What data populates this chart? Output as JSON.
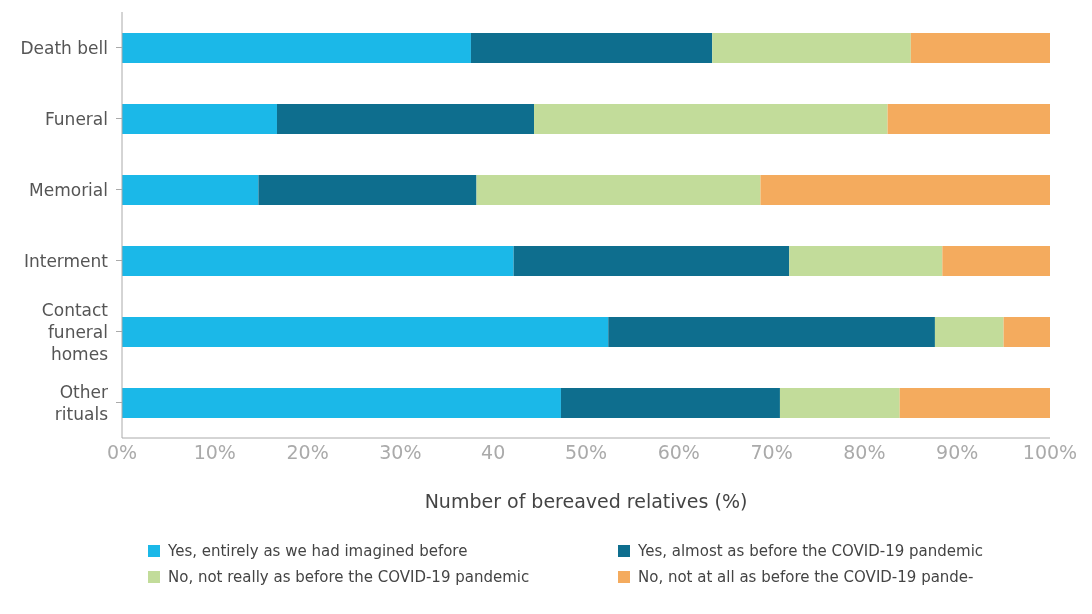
{
  "chart_data": {
    "type": "bar",
    "orientation": "horizontal",
    "stacked": true,
    "xlabel": "Number of bereaved relatives (%)",
    "categories": [
      "Death bell",
      "Funeral",
      "Memorial",
      "Interment",
      "Contact funeral homes",
      "Other rituals"
    ],
    "series": [
      {
        "name": "Yes, entirely as we had imagined before",
        "color": "#1bb8e8",
        "values": [
          37.6,
          16.7,
          14.7,
          42.2,
          52.4,
          47.3
        ]
      },
      {
        "name": "Yes, almost as before the COVID-19 pandemic",
        "color": "#0e6e8e",
        "values": [
          26.0,
          27.7,
          23.5,
          29.7,
          35.2,
          23.6
        ]
      },
      {
        "name": "No, not really as before the COVID-19 pandemic",
        "color": "#c2dc9a",
        "values": [
          21.4,
          38.1,
          30.6,
          16.5,
          7.4,
          12.9
        ]
      },
      {
        "name": "No, not at all as before the COVID-19 pande-",
        "color": "#f4ab5e",
        "values": [
          15.0,
          17.5,
          31.2,
          11.6,
          5.0,
          16.2
        ]
      }
    ],
    "xlim": [
      0,
      100
    ],
    "xticks": [
      {
        "value": 0,
        "label": "0%"
      },
      {
        "value": 10,
        "label": "10%"
      },
      {
        "value": 20,
        "label": "20%"
      },
      {
        "value": 30,
        "label": "30%"
      },
      {
        "value": 40,
        "label": "40"
      },
      {
        "value": 50,
        "label": "50%"
      },
      {
        "value": 60,
        "label": "60%"
      },
      {
        "value": 70,
        "label": "70%"
      },
      {
        "value": 80,
        "label": "80%"
      },
      {
        "value": 90,
        "label": "90%"
      },
      {
        "value": 100,
        "label": "100%"
      }
    ],
    "grid": false,
    "legend": "bottom"
  }
}
